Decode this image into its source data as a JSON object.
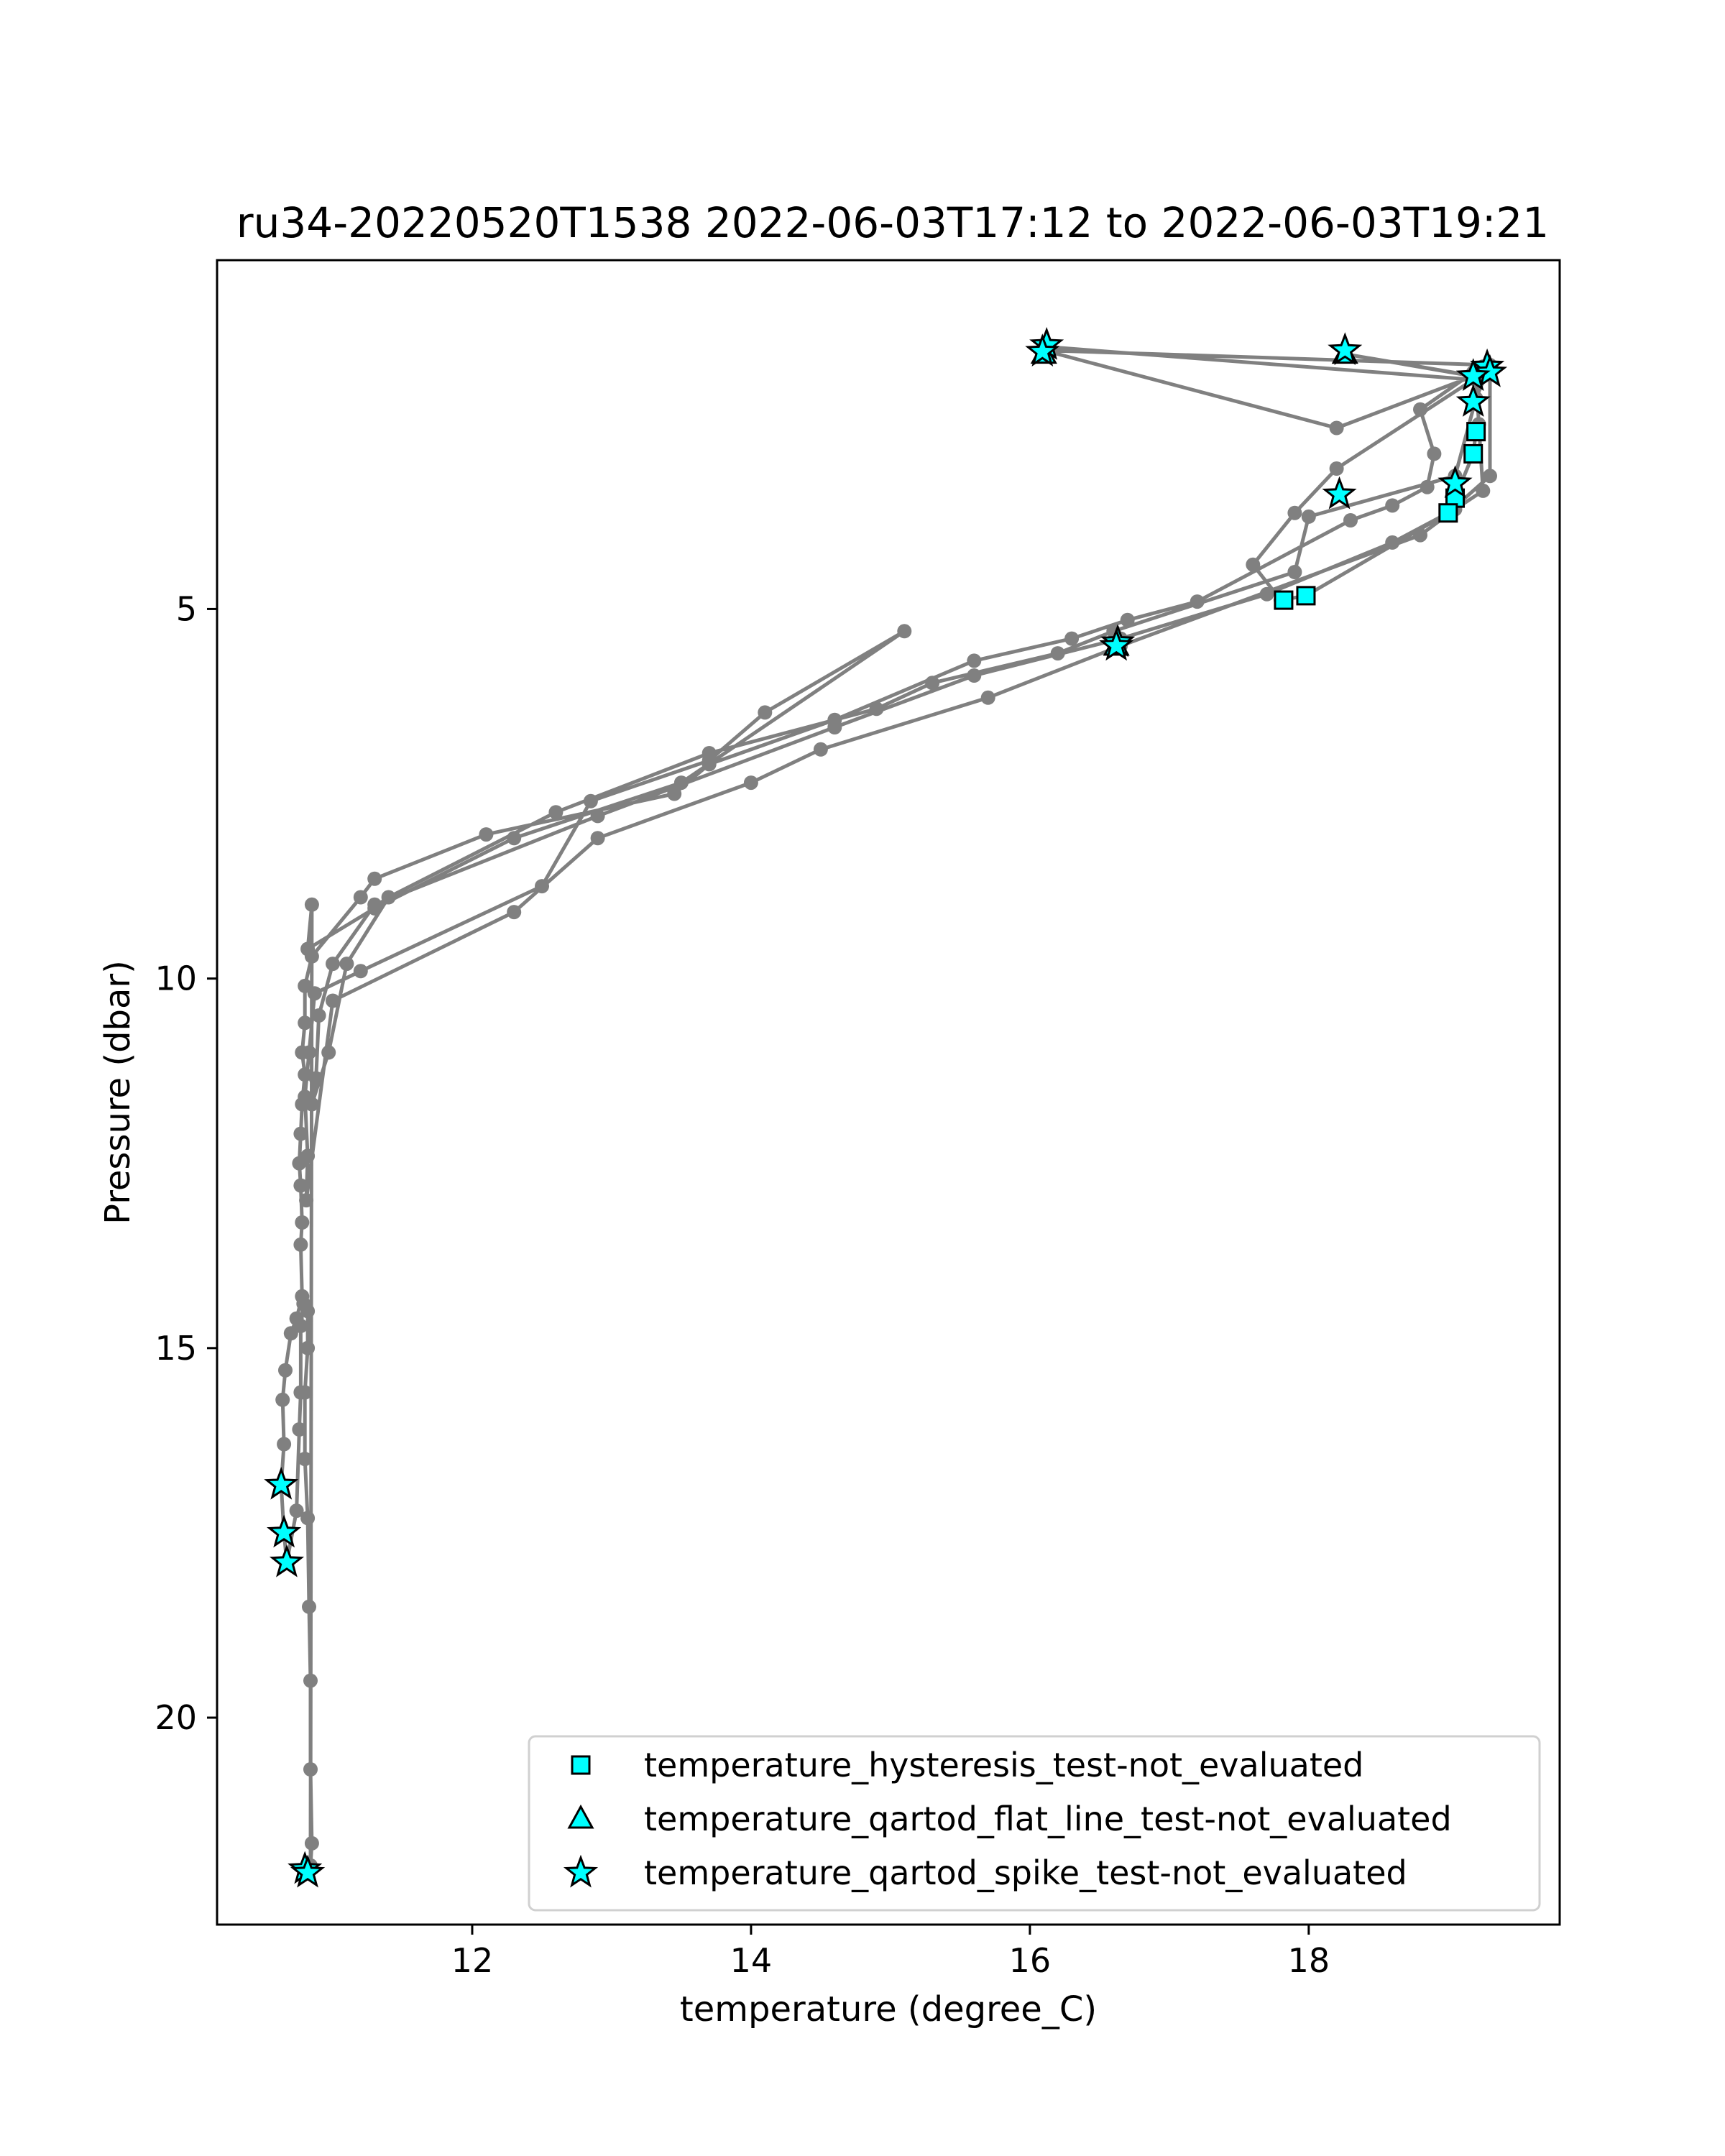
{
  "chart_data": {
    "type": "line",
    "title": "ru34-20220520T1538 2022-06-03T17:12 to 2022-06-03T19:21",
    "xlabel": "temperature (degree_C)",
    "ylabel": "Pressure (dbar)",
    "xlim": [
      10.17,
      19.8
    ],
    "ylim": [
      22.8,
      0.28
    ],
    "y_inverted": true,
    "grid": false,
    "legend_position": "lower-right",
    "x_ticks": [
      12,
      14,
      16,
      18
    ],
    "y_ticks": [
      5,
      10,
      15,
      20
    ],
    "colors": {
      "profile_line": "#808080",
      "flag_fill": "#00ffff",
      "flag_edge": "#000000"
    },
    "profile": [
      [
        16.1,
        1.45
      ],
      [
        19.2,
        1.9
      ],
      [
        19.28,
        1.75
      ],
      [
        19.25,
        1.72
      ],
      [
        19.18,
        1.8
      ],
      [
        18.8,
        2.3
      ],
      [
        18.9,
        2.9
      ],
      [
        18.85,
        3.35
      ],
      [
        18.6,
        3.6
      ],
      [
        18.3,
        3.8
      ],
      [
        17.2,
        4.9
      ],
      [
        16.7,
        5.15
      ],
      [
        16.3,
        5.4
      ],
      [
        15.6,
        5.7
      ],
      [
        14.6,
        6.5
      ],
      [
        13.7,
        7.1
      ],
      [
        13.45,
        7.5
      ],
      [
        12.1,
        8.05
      ],
      [
        11.3,
        8.65
      ],
      [
        11.2,
        8.9
      ],
      [
        10.85,
        9.7
      ],
      [
        10.8,
        10.1
      ],
      [
        10.8,
        10.6
      ],
      [
        10.78,
        11.0
      ],
      [
        10.8,
        11.3
      ],
      [
        10.78,
        11.7
      ],
      [
        10.77,
        12.1
      ],
      [
        10.76,
        12.5
      ],
      [
        10.77,
        12.8
      ],
      [
        10.78,
        13.3
      ],
      [
        10.77,
        13.6
      ],
      [
        10.78,
        14.3
      ],
      [
        10.74,
        14.6
      ],
      [
        10.7,
        14.8
      ],
      [
        10.66,
        15.3
      ],
      [
        10.64,
        15.7
      ],
      [
        10.65,
        16.3
      ],
      [
        10.63,
        16.85
      ],
      [
        10.65,
        17.5
      ],
      [
        10.67,
        17.9
      ],
      [
        10.74,
        17.2
      ],
      [
        10.76,
        16.1
      ],
      [
        10.77,
        15.6
      ],
      [
        10.77,
        14.7
      ],
      [
        10.79,
        14.4
      ],
      [
        10.82,
        14.5
      ],
      [
        10.82,
        15.0
      ],
      [
        10.8,
        15.6
      ],
      [
        10.8,
        16.5
      ],
      [
        10.82,
        17.3
      ],
      [
        10.83,
        18.5
      ],
      [
        10.84,
        19.5
      ],
      [
        10.84,
        20.7
      ],
      [
        10.85,
        21.7
      ],
      [
        10.84,
        22.0
      ],
      [
        10.85,
        9.0
      ],
      [
        10.82,
        9.6
      ],
      [
        11.3,
        9.05
      ],
      [
        12.3,
        8.1
      ],
      [
        13.5,
        7.35
      ],
      [
        15.1,
        5.3
      ],
      [
        14.1,
        6.4
      ],
      [
        13.7,
        7.05
      ],
      [
        12.85,
        7.6
      ],
      [
        12.5,
        8.75
      ],
      [
        11.2,
        9.9
      ],
      [
        10.87,
        10.2
      ],
      [
        10.83,
        11.0
      ],
      [
        10.8,
        11.6
      ],
      [
        10.82,
        12.4
      ],
      [
        10.81,
        13.0
      ],
      [
        11.0,
        10.3
      ],
      [
        12.3,
        9.1
      ],
      [
        12.9,
        8.1
      ],
      [
        14.0,
        7.35
      ],
      [
        14.5,
        6.9
      ],
      [
        15.7,
        6.2
      ],
      [
        16.65,
        5.5
      ],
      [
        18.8,
        4.0
      ],
      [
        19.05,
        3.65
      ],
      [
        19.25,
        3.4
      ],
      [
        19.22,
        2.5
      ],
      [
        19.2,
        1.85
      ],
      [
        18.26,
        1.55
      ],
      [
        19.18,
        1.85
      ],
      [
        18.2,
        2.55
      ],
      [
        16.1,
        1.5
      ],
      [
        19.3,
        1.7
      ],
      [
        19.2,
        2.15
      ],
      [
        19.05,
        3.2
      ],
      [
        18.0,
        3.75
      ],
      [
        17.9,
        4.5
      ],
      [
        16.6,
        5.3
      ],
      [
        16.2,
        5.6
      ],
      [
        15.3,
        6.0
      ],
      [
        14.9,
        6.35
      ],
      [
        13.7,
        6.95
      ],
      [
        12.6,
        7.75
      ],
      [
        11.4,
        8.9
      ],
      [
        11.1,
        9.8
      ],
      [
        10.97,
        11.0
      ],
      [
        10.85,
        11.7
      ],
      [
        10.88,
        11.35
      ],
      [
        10.9,
        10.5
      ],
      [
        11.0,
        9.8
      ],
      [
        11.3,
        9.0
      ],
      [
        12.9,
        7.8
      ],
      [
        14.6,
        6.6
      ],
      [
        15.6,
        5.9
      ],
      [
        16.65,
        5.4
      ],
      [
        17.7,
        4.8
      ],
      [
        18.6,
        4.1
      ],
      [
        19.0,
        3.7
      ],
      [
        19.3,
        3.2
      ],
      [
        19.3,
        1.75
      ],
      [
        18.2,
        3.1
      ],
      [
        17.9,
        3.7
      ],
      [
        17.6,
        4.4
      ],
      [
        17.8,
        4.88
      ],
      [
        17.98,
        4.82
      ],
      [
        19.0,
        3.7
      ],
      [
        19.05,
        3.5
      ],
      [
        19.18,
        2.9
      ],
      [
        19.2,
        2.6
      ]
    ],
    "series": [
      {
        "name": "temperature_hysteresis_test-not_evaluated",
        "marker": "square",
        "points": [
          [
            19.2,
            2.6
          ],
          [
            19.18,
            2.9
          ],
          [
            19.05,
            3.5
          ],
          [
            19.0,
            3.7
          ],
          [
            17.98,
            4.82
          ],
          [
            17.82,
            4.88
          ]
        ]
      },
      {
        "name": "temperature_qartod_flat_line_test-not_evaluated",
        "marker": "triangle",
        "points": [
          [
            16.1,
            1.55
          ],
          [
            18.26,
            1.55
          ],
          [
            16.62,
            5.5
          ]
        ]
      },
      {
        "name": "temperature_qartod_spike_test-not_evaluated",
        "marker": "star",
        "points": [
          [
            16.12,
            1.43
          ],
          [
            16.09,
            1.52
          ],
          [
            18.26,
            1.5
          ],
          [
            19.28,
            1.72
          ],
          [
            19.3,
            1.8
          ],
          [
            19.18,
            1.85
          ],
          [
            19.18,
            2.2
          ],
          [
            19.05,
            3.3
          ],
          [
            18.22,
            3.45
          ],
          [
            16.63,
            5.45
          ],
          [
            16.62,
            5.5
          ],
          [
            10.63,
            16.85
          ],
          [
            10.65,
            17.5
          ],
          [
            10.67,
            17.9
          ],
          [
            10.8,
            22.05
          ],
          [
            10.82,
            22.1
          ]
        ]
      }
    ]
  }
}
